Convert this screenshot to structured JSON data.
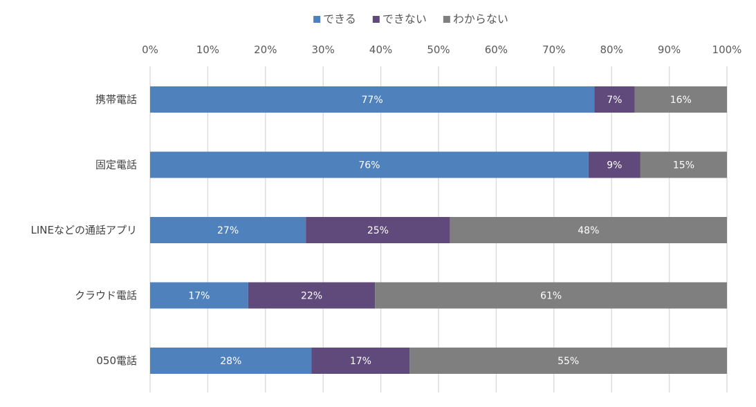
{
  "chart_data": {
    "type": "bar",
    "orientation": "horizontal",
    "stacked": true,
    "title": "",
    "xlabel": "",
    "ylabel": "",
    "xlim": [
      0,
      100
    ],
    "x_ticks": [
      "0%",
      "10%",
      "20%",
      "30%",
      "40%",
      "50%",
      "60%",
      "70%",
      "80%",
      "90%",
      "100%"
    ],
    "grid": true,
    "legend_position": "top-center",
    "categories": [
      "携帯電話",
      "固定電話",
      "LINEなどの通話アプリ",
      "クラウド電話",
      "050電話"
    ],
    "series": [
      {
        "name": "できる",
        "color": "#4f81bd",
        "values": [
          77,
          76,
          27,
          17,
          28
        ]
      },
      {
        "name": "できない",
        "color": "#604a7b",
        "values": [
          7,
          9,
          25,
          22,
          17
        ]
      },
      {
        "name": "わからない",
        "color": "#7f7f7f",
        "values": [
          16,
          15,
          48,
          61,
          55
        ]
      }
    ],
    "value_format": "%"
  }
}
